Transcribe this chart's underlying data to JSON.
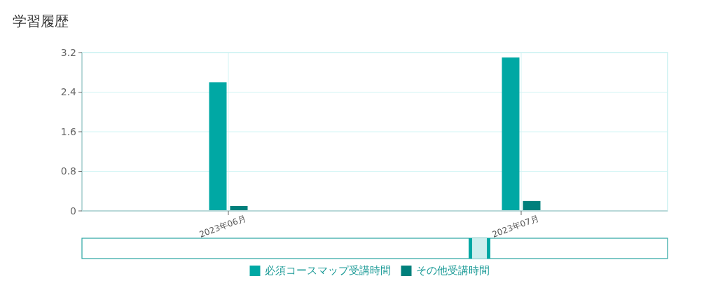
{
  "chart_data": {
    "type": "bar",
    "title": "学習履歴",
    "categories": [
      "2023年06月",
      "2023年07月"
    ],
    "series": [
      {
        "name": "必須コースマップ受講時間",
        "color": "#00a8a4",
        "values": [
          2.6,
          3.1
        ]
      },
      {
        "name": "その他受講時間",
        "color": "#00807c",
        "values": [
          0.1,
          0.2
        ]
      }
    ],
    "ylim": [
      0,
      3.2
    ],
    "yticks": [
      0,
      0.8,
      1.6,
      2.4,
      3.2
    ],
    "grid": true,
    "legend": "bottom"
  }
}
